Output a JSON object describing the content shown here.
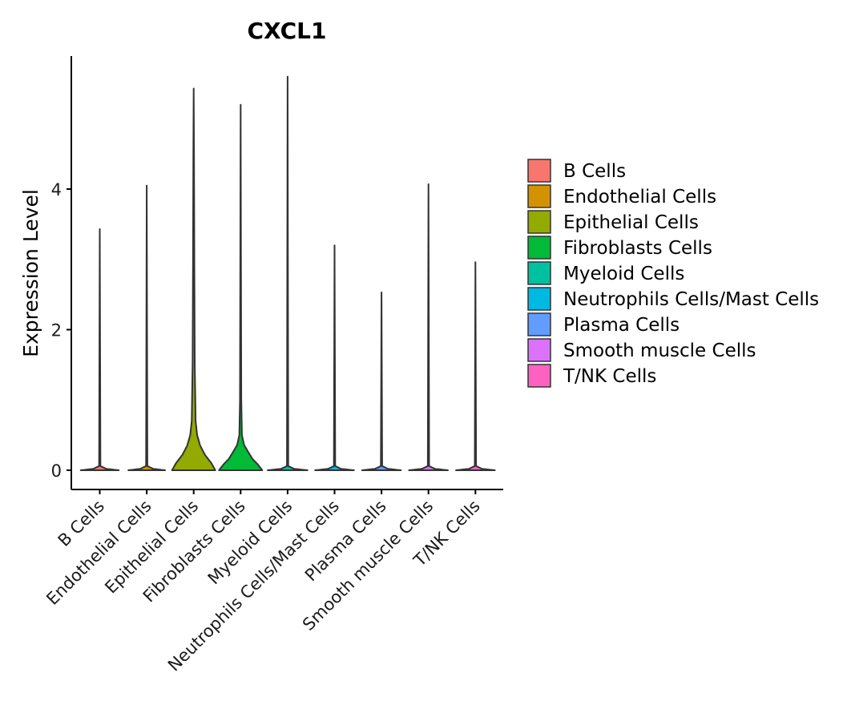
{
  "chart_data": {
    "type": "violin",
    "title": "CXCL1",
    "xlabel": "",
    "ylabel": "Expression Level",
    "ylim": [
      -0.3,
      5.85
    ],
    "yticks": [
      0,
      2,
      4
    ],
    "categories": [
      "B Cells",
      "Endothelial Cells",
      "Epithelial Cells",
      "Fibroblasts Cells",
      "Myeloid Cells",
      "Neutrophils Cells/Mast Cells",
      "Plasma Cells",
      "Smooth muscle Cells",
      "T/NK Cells"
    ],
    "colors": [
      "#F8766D",
      "#D39200",
      "#93AA00",
      "#00BA38",
      "#00C19F",
      "#00B9E3",
      "#619CFF",
      "#DB72FB",
      "#FF61C3"
    ],
    "series": [
      {
        "name": "B Cells",
        "max": 3.43,
        "profile": [
          [
            0,
            0.88
          ],
          [
            0.02,
            0.3
          ],
          [
            0.06,
            0.03
          ],
          [
            3.43,
            0.0
          ]
        ]
      },
      {
        "name": "Endothelial Cells",
        "max": 4.05,
        "profile": [
          [
            0,
            0.85
          ],
          [
            0.02,
            0.3
          ],
          [
            0.06,
            0.03
          ],
          [
            4.05,
            0.0
          ]
        ]
      },
      {
        "name": "Epithelial Cells",
        "max": 5.43,
        "profile": [
          [
            0,
            1.0
          ],
          [
            0.1,
            0.82
          ],
          [
            0.22,
            0.52
          ],
          [
            0.35,
            0.3
          ],
          [
            0.5,
            0.16
          ],
          [
            0.7,
            0.09
          ],
          [
            1.5,
            0.05
          ],
          [
            3.0,
            0.03
          ],
          [
            4.5,
            0.015
          ],
          [
            5.43,
            0.0
          ]
        ]
      },
      {
        "name": "Fibroblasts Cells",
        "max": 5.2,
        "profile": [
          [
            0,
            1.0
          ],
          [
            0.08,
            0.8
          ],
          [
            0.16,
            0.55
          ],
          [
            0.26,
            0.35
          ],
          [
            0.36,
            0.16
          ],
          [
            0.5,
            0.06
          ],
          [
            1.0,
            0.03
          ],
          [
            3.0,
            0.015
          ],
          [
            5.2,
            0.0
          ]
        ]
      },
      {
        "name": "Myeloid Cells",
        "max": 5.6,
        "profile": [
          [
            0,
            0.92
          ],
          [
            0.02,
            0.3
          ],
          [
            0.06,
            0.03
          ],
          [
            5.6,
            0.0
          ]
        ]
      },
      {
        "name": "Neutrophils Cells/Mast Cells",
        "max": 3.2,
        "profile": [
          [
            0,
            0.9
          ],
          [
            0.02,
            0.3
          ],
          [
            0.06,
            0.03
          ],
          [
            3.2,
            0.0
          ]
        ]
      },
      {
        "name": "Plasma Cells",
        "max": 2.53,
        "profile": [
          [
            0,
            0.9
          ],
          [
            0.02,
            0.3
          ],
          [
            0.06,
            0.03
          ],
          [
            2.53,
            0.0
          ]
        ]
      },
      {
        "name": "Smooth muscle Cells",
        "max": 4.07,
        "profile": [
          [
            0,
            0.9
          ],
          [
            0.02,
            0.3
          ],
          [
            0.06,
            0.03
          ],
          [
            4.07,
            0.0
          ]
        ]
      },
      {
        "name": "T/NK Cells",
        "max": 2.96,
        "profile": [
          [
            0,
            0.9
          ],
          [
            0.02,
            0.3
          ],
          [
            0.06,
            0.03
          ],
          [
            2.96,
            0.0
          ]
        ]
      }
    ],
    "legend_position": "right",
    "grid": false
  }
}
